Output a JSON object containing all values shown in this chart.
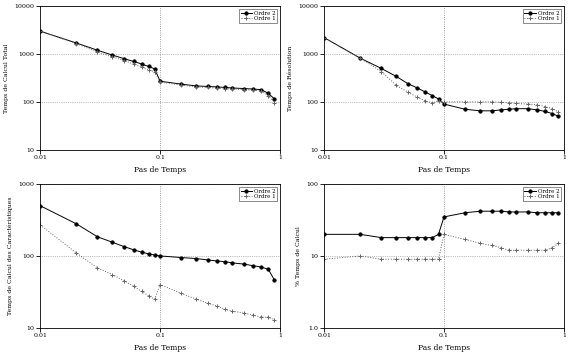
{
  "x": [
    0.01,
    0.02,
    0.03,
    0.04,
    0.05,
    0.06,
    0.07,
    0.08,
    0.09,
    0.1,
    0.15,
    0.2,
    0.25,
    0.3,
    0.35,
    0.4,
    0.5,
    0.6,
    0.7,
    0.8,
    0.9
  ],
  "top_left": {
    "ylabel": "Temps de Calcul Total",
    "xlabel": "Pas de Temps",
    "ylim": [
      10,
      10000
    ],
    "xlim": [
      0.01,
      1
    ],
    "ordre2": [
      3000,
      1700,
      1200,
      950,
      800,
      700,
      620,
      550,
      490,
      270,
      235,
      215,
      210,
      205,
      200,
      195,
      190,
      185,
      180,
      150,
      115
    ],
    "ordre1": [
      3000,
      1650,
      1100,
      870,
      730,
      620,
      530,
      470,
      420,
      260,
      225,
      205,
      200,
      195,
      190,
      185,
      180,
      175,
      170,
      135,
      97
    ]
  },
  "top_right": {
    "ylabel": "Temps de Résolution",
    "xlabel": "Pas de Temps",
    "ylim": [
      10,
      10000
    ],
    "xlim": [
      0.01,
      1
    ],
    "ordre2": [
      2200,
      820,
      500,
      340,
      240,
      195,
      160,
      135,
      115,
      90,
      70,
      65,
      65,
      68,
      70,
      72,
      72,
      68,
      63,
      57,
      50
    ],
    "ordre1": [
      2200,
      820,
      430,
      220,
      160,
      125,
      105,
      95,
      105,
      100,
      100,
      100,
      100,
      98,
      96,
      93,
      90,
      87,
      80,
      72,
      62
    ]
  },
  "bottom_left": {
    "ylabel": "Temps de Calcul des Caractéristiques",
    "xlabel": "Pas de Temps",
    "ylim": [
      10,
      1000
    ],
    "xlim": [
      0.01,
      1
    ],
    "ordre2": [
      500,
      280,
      185,
      155,
      135,
      122,
      113,
      107,
      103,
      100,
      95,
      92,
      88,
      85,
      83,
      80,
      77,
      73,
      70,
      65,
      46
    ],
    "ordre1": [
      270,
      110,
      68,
      55,
      45,
      38,
      32,
      28,
      25,
      40,
      30,
      25,
      22,
      20,
      18,
      17,
      16,
      15,
      14,
      14,
      13
    ]
  },
  "bottom_right": {
    "ylabel": "% Temps de Calcul",
    "xlabel": "Pas de Temps",
    "ylim": [
      1,
      100
    ],
    "xlim": [
      0.01,
      1
    ],
    "ordre2": [
      20,
      20,
      18,
      18,
      18,
      18,
      18,
      18,
      20,
      35,
      40,
      42,
      42,
      42,
      41,
      41,
      41,
      40,
      40,
      40,
      40
    ],
    "ordre1": [
      9,
      10,
      9,
      9,
      9,
      9,
      9,
      9,
      9,
      20,
      17,
      15,
      14,
      13,
      12,
      12,
      12,
      12,
      12,
      13,
      15
    ]
  },
  "legend_ordre2": "Ordre 2",
  "legend_ordre1": "Ordre 1",
  "color_ordre2": "#000000",
  "color_ordre1": "#666666",
  "vline_x": 0.1,
  "marker_ordre2": "o",
  "marker_ordre1": "+"
}
